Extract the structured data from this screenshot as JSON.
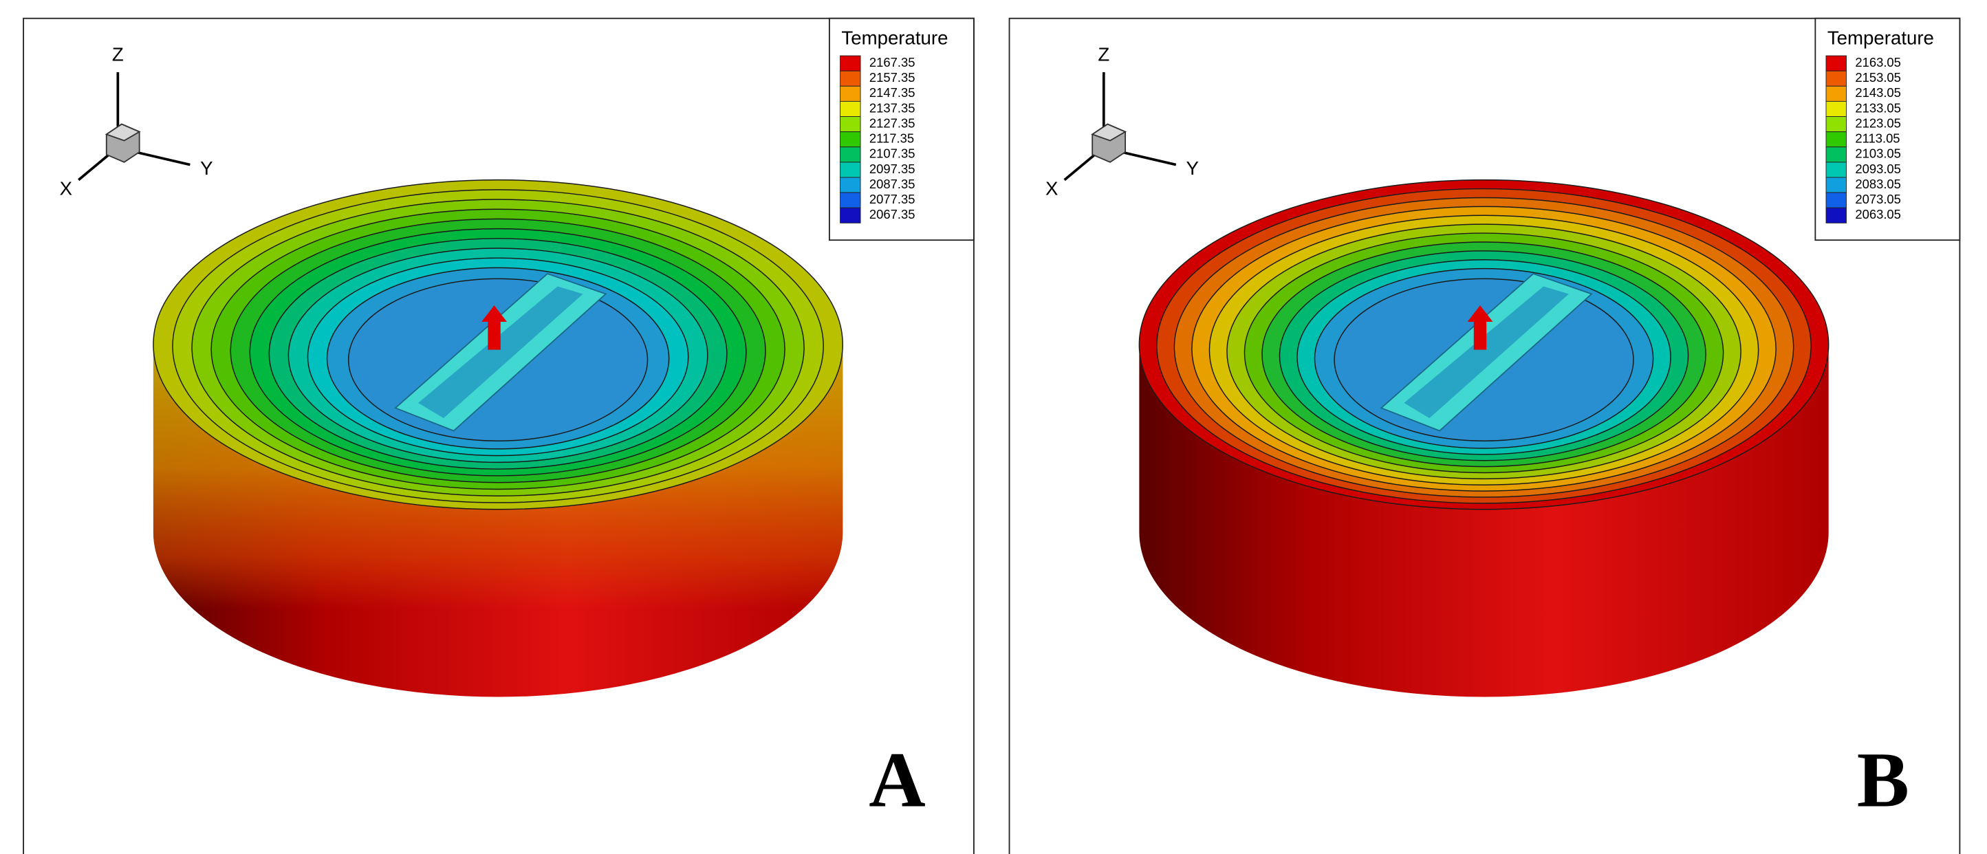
{
  "panels": [
    {
      "label": "A",
      "axes": {
        "z": "Z",
        "y": "Y",
        "x": "X"
      },
      "legend": {
        "title": "Temperature",
        "values": [
          "2167.35",
          "2157.35",
          "2147.35",
          "2137.35",
          "2127.35",
          "2117.35",
          "2107.35",
          "2097.35",
          "2087.35",
          "2077.35",
          "2067.35"
        ]
      }
    },
    {
      "label": "B",
      "axes": {
        "z": "Z",
        "y": "Y",
        "x": "X"
      },
      "legend": {
        "title": "Temperature",
        "values": [
          "2163.05",
          "2153.05",
          "2143.05",
          "2133.05",
          "2123.05",
          "2113.05",
          "2103.05",
          "2093.05",
          "2083.05",
          "2073.05",
          "2063.05"
        ]
      }
    }
  ]
}
